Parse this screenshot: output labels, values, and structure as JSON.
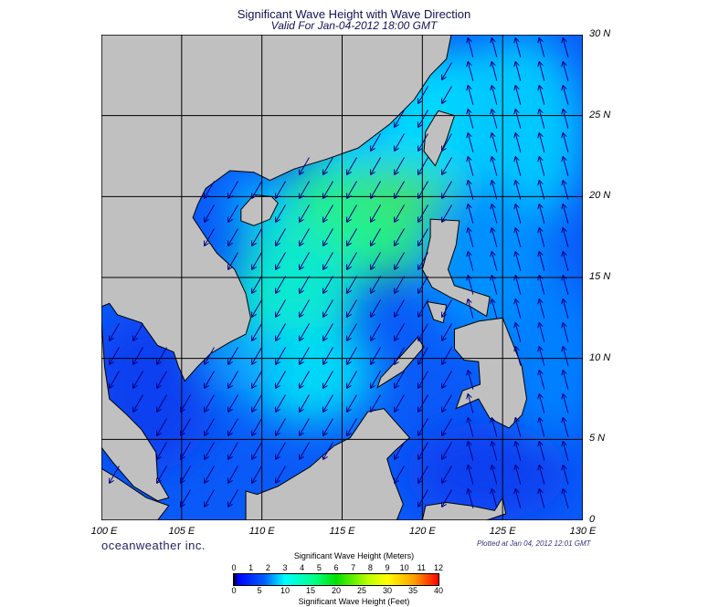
{
  "title": "Significant Wave Height with Wave Direction",
  "subtitle": "Valid For Jan-04-2012 18:00 GMT",
  "lat_labels": [
    "30 N",
    "25 N",
    "20 N",
    "15 N",
    "10 N",
    "5 N",
    "0"
  ],
  "lon_labels": [
    "100 E",
    "105 E",
    "110 E",
    "115 E",
    "120 E",
    "125 E",
    "130 E"
  ],
  "map_extent": {
    "lon": [
      100,
      130
    ],
    "lat": [
      0,
      30
    ],
    "grid_interval_deg": 5
  },
  "credit": "oceanweather inc.",
  "plotted": "Plotted at Jan 04, 2012 12:01 GMT",
  "colorbar": {
    "title_top": "Significant Wave Height (Meters)",
    "title_bottom": "Significant Wave Height (Feet)",
    "meters": [
      "0",
      "1",
      "2",
      "3",
      "4",
      "5",
      "6",
      "7",
      "8",
      "9",
      "10",
      "11",
      "12"
    ],
    "feet": [
      "0",
      "5",
      "10",
      "15",
      "20",
      "25",
      "30",
      "35",
      "40"
    ],
    "colors": [
      "#000000",
      "#0000ff",
      "#00ffff",
      "#00e000",
      "#ffff00",
      "#ff0000"
    ]
  },
  "colors": {
    "land": "#c0c0c0",
    "arrow": "#000080"
  }
}
